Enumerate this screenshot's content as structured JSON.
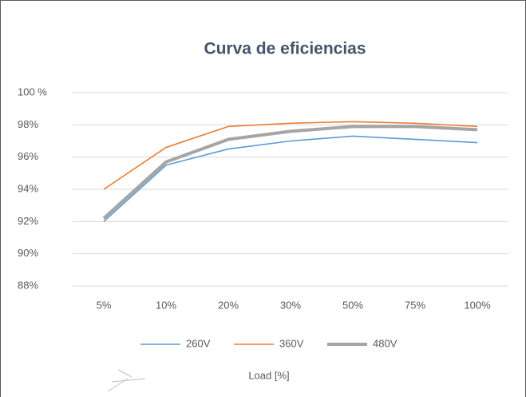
{
  "chart_data": {
    "type": "line",
    "title": "Curva de eficiencias",
    "x_label": "Load [%]",
    "categories": [
      "5%",
      "10%",
      "20%",
      "30%",
      "50%",
      "75%",
      "100%"
    ],
    "series": [
      {
        "name": "260V",
        "color": "#5b9bd5",
        "values": [
          92.0,
          95.5,
          96.5,
          97.0,
          97.3,
          97.1,
          96.9
        ]
      },
      {
        "name": "360V",
        "color": "#ed7d31",
        "values": [
          94.0,
          96.6,
          97.9,
          98.1,
          98.2,
          98.1,
          97.9
        ]
      },
      {
        "name": "480V",
        "color": "#a5a5a5",
        "values": [
          92.2,
          95.7,
          97.1,
          97.6,
          97.9,
          97.9,
          97.7
        ]
      }
    ],
    "ylim": [
      88,
      100
    ],
    "yticks": [
      {
        "value": 88,
        "label": "88%"
      },
      {
        "value": 90,
        "label": "90%"
      },
      {
        "value": 92,
        "label": "92%"
      },
      {
        "value": 94,
        "label": "94%"
      },
      {
        "value": 96,
        "label": "96%"
      },
      {
        "value": 98,
        "label": "98%"
      },
      {
        "value": 100,
        "label": "100 %"
      }
    ],
    "grid": true,
    "legend": "bottom"
  }
}
